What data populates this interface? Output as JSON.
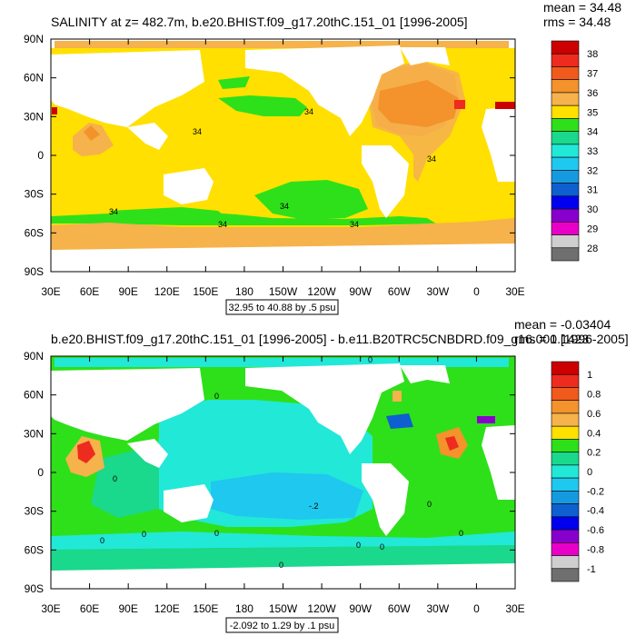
{
  "chart_data": [
    {
      "type": "heatmap",
      "title": "SALINITY at z= 482.7m, b.e20.BHIST.f09_g17.20thC.151_01 [1996-2005]",
      "mean_label": "mean = 34.48",
      "rms_label": "rms = 34.48",
      "contour_info": "32.95 to 40.88 by .5 psu",
      "x_ticks": [
        "30E",
        "60E",
        "90E",
        "120E",
        "150E",
        "180",
        "150W",
        "120W",
        "90W",
        "60W",
        "30W",
        "0",
        "30E"
      ],
      "y_ticks": [
        "90N",
        "60N",
        "30N",
        "0",
        "30S",
        "60S",
        "90S"
      ],
      "colorbar_levels": [
        "38",
        "37",
        "36",
        "35",
        "34",
        "33",
        "32",
        "31",
        "30",
        "29",
        "28"
      ],
      "colorbar_colors": [
        "#cc0000",
        "#ee2b1f",
        "#f05a1d",
        "#f4922c",
        "#f6b24b",
        "#ffe000",
        "#2ee01a",
        "#1ad88c",
        "#22e8d8",
        "#1fc8ee",
        "#159ae0",
        "#0e5fd0",
        "#0000ee",
        "#8800cc",
        "#e800c8",
        "#cfcfcf",
        "#6f6f6f"
      ],
      "contour_labels": [
        "34",
        "34",
        "34",
        "34",
        "34",
        "34",
        "34"
      ],
      "color_scale": {
        "levels": [
          28,
          29,
          30,
          31,
          32,
          33,
          34,
          35,
          36,
          37,
          38
        ],
        "colors": [
          "#707070",
          "#d0d0d0",
          "#e600c8",
          "#8a00c8",
          "#0000ee",
          "#1a6ee0",
          "#22b8e8",
          "#2ee8d8",
          "#5be61e",
          "#ffe400",
          "#f6b83c",
          "#f39a2c",
          "#f0781c",
          "#ec3d14",
          "#cc0000"
        ]
      },
      "region_values": {
        "base_ocean": 34.5,
        "north_atlantic": 35.7,
        "arabian_sea": 35.3,
        "south_pacific_low": 33.9,
        "southern_ocean_band": 33.9,
        "antarctic_shelf": 34.7,
        "mediterranean_outflow": 37.0
      }
    },
    {
      "type": "heatmap",
      "title": "b.e20.BHIST.f09_g17.20thC.151_01 [1996-2005] - b.e11.B20TRC5CNBDRD.f09_g16.001 [1996-2005]",
      "mean_label": "mean = -0.03404",
      "rms_label": "rms = 0.1423",
      "contour_info": "-2.092 to 1.29 by .1 psu",
      "x_ticks": [
        "30E",
        "60E",
        "90E",
        "120E",
        "150E",
        "180",
        "150W",
        "120W",
        "90W",
        "60W",
        "30W",
        "0",
        "30E"
      ],
      "y_ticks": [
        "90N",
        "60N",
        "30N",
        "0",
        "30S",
        "60S",
        "90S"
      ],
      "colorbar_levels": [
        "1",
        "0.8",
        "0.6",
        "0.4",
        "0.2",
        "0",
        "-0.2",
        "-0.4",
        "-0.6",
        "-0.8",
        "-1"
      ],
      "colorbar_colors": [
        "#cc0000",
        "#ee2b1f",
        "#f05a1d",
        "#f4922c",
        "#f6b24b",
        "#ffe000",
        "#2ee01a",
        "#1ad88c",
        "#22e8d8",
        "#1fc8ee",
        "#159ae0",
        "#0e5fd0",
        "#0000ee",
        "#8800cc",
        "#e800c8",
        "#cfcfcf",
        "#6f6f6f"
      ],
      "contour_labels": [
        "0",
        "0",
        "0",
        "-.2",
        "0",
        "0",
        "0",
        "0",
        "0",
        "0",
        "0",
        "0"
      ],
      "color_scale": {
        "levels": [
          -1,
          -0.8,
          -0.6,
          -0.4,
          -0.2,
          0,
          0.2,
          0.4,
          0.6,
          0.8,
          1
        ],
        "colors": [
          "#707070",
          "#d0d0d0",
          "#e600c8",
          "#8a00c8",
          "#0000ee",
          "#1a6ee0",
          "#22b8e8",
          "#2ee8d8",
          "#5be61e",
          "#ffe400",
          "#f6b83c",
          "#f39a2c",
          "#f0781c",
          "#ec3d14",
          "#cc0000"
        ]
      },
      "region_values": {
        "tropical_pacific": -0.15,
        "indian_ocean": 0.05,
        "arabian_sea": 0.6,
        "north_atlantic": 0.1,
        "azores": 0.5,
        "gulf_stream_low": -0.45,
        "southern_ocean": 0.05,
        "south_atlantic": 0.05
      }
    }
  ]
}
